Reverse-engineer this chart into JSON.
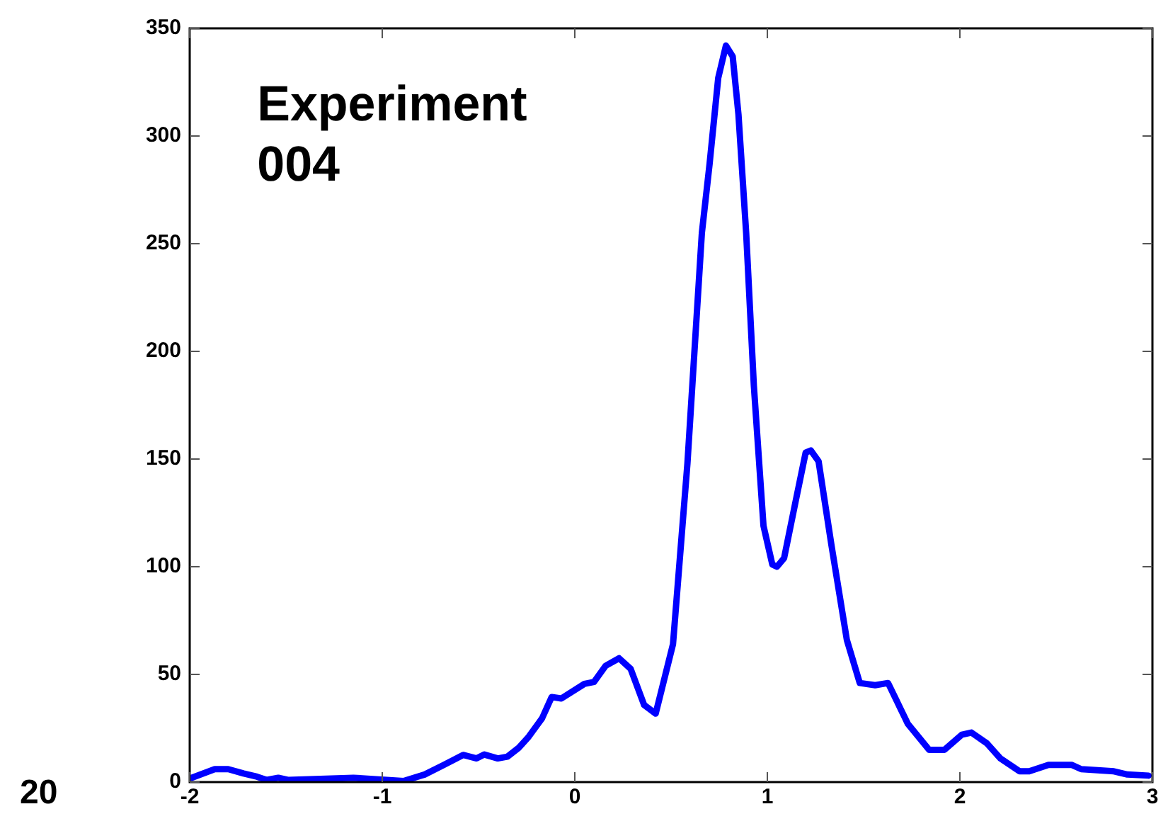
{
  "chart_data": {
    "type": "line",
    "title": "Experiment 004",
    "annotations": [
      "20"
    ],
    "x": [
      -1.99,
      -1.87,
      -1.8,
      -1.72,
      -1.65,
      -1.6,
      -1.54,
      -1.49,
      -1.15,
      -0.89,
      -0.78,
      -0.68,
      -0.58,
      -0.51,
      -0.47,
      -0.4,
      -0.35,
      -0.29,
      -0.24,
      -0.17,
      -0.12,
      -0.07,
      0.05,
      0.1,
      0.16,
      0.23,
      0.29,
      0.36,
      0.42,
      0.51,
      0.585,
      0.66,
      0.7,
      0.745,
      0.785,
      0.82,
      0.85,
      0.89,
      0.93,
      0.98,
      1.026,
      1.05,
      1.087,
      1.146,
      1.199,
      1.226,
      1.266,
      1.333,
      1.413,
      1.48,
      1.56,
      1.627,
      1.73,
      1.84,
      1.92,
      2.01,
      2.06,
      2.14,
      2.21,
      2.31,
      2.36,
      2.46,
      2.58,
      2.63,
      2.8,
      2.87,
      2.98
    ],
    "series": [
      {
        "color": "#0000ff",
        "values": [
          2,
          6,
          6,
          4,
          2.5,
          1,
          2,
          1,
          2,
          0.5,
          3.5,
          8,
          12.6,
          11,
          12.8,
          11,
          11.8,
          16,
          21,
          29.6,
          39.5,
          38.8,
          45.6,
          46.5,
          54,
          57.5,
          52.6,
          35.8,
          31.8,
          64,
          148,
          255,
          287,
          327,
          342,
          337,
          310,
          255,
          184,
          119,
          101,
          100,
          104,
          130,
          153,
          154,
          149,
          110,
          66,
          46,
          45,
          46,
          27,
          15,
          15,
          22,
          23,
          18,
          11,
          5,
          5,
          8,
          8,
          6,
          5,
          3.5,
          3
        ]
      }
    ],
    "xlim": [
      -2,
      3
    ],
    "xticks": [
      -2,
      -1,
      0,
      1,
      2,
      3
    ],
    "ylim": [
      0,
      350
    ],
    "yticks": [
      0,
      50,
      100,
      150,
      200,
      250,
      300,
      350
    ],
    "grid": false,
    "legend": false,
    "marker": "none",
    "line_style": "solid"
  }
}
